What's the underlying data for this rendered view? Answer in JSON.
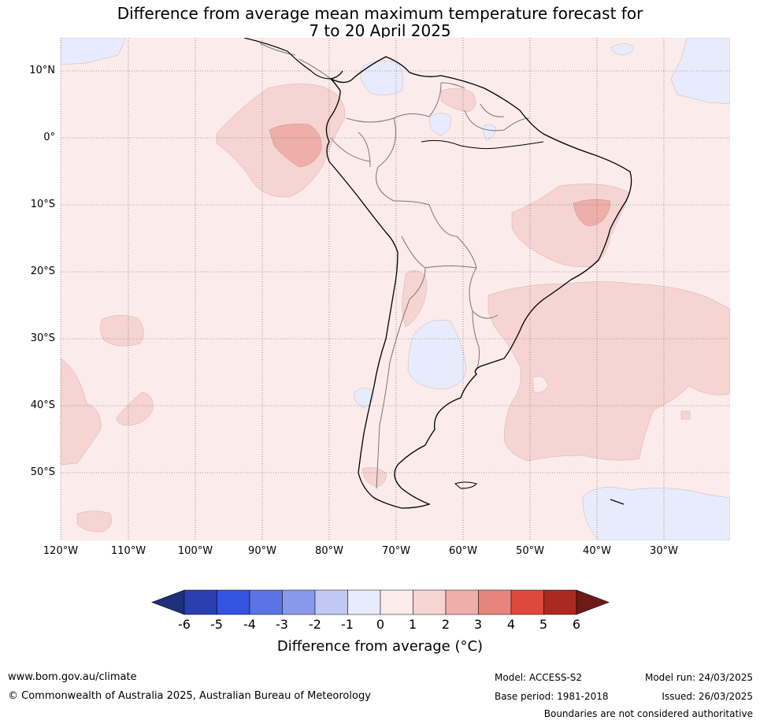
{
  "title": {
    "line1": "Difference from average mean maximum temperature forecast for",
    "line2": "7 to 20 April 2025"
  },
  "map": {
    "region": "South America",
    "lat_labels": [
      "10°N",
      "0°",
      "10°S",
      "20°S",
      "30°S",
      "40°S",
      "50°S"
    ],
    "lon_labels": [
      "120°W",
      "110°W",
      "100°W",
      "90°W",
      "80°W",
      "70°W",
      "60°W",
      "50°W",
      "40°W",
      "30°W"
    ],
    "background_color": "#fbebea"
  },
  "colorbar": {
    "ticks": [
      "-6",
      "-5",
      "-4",
      "-3",
      "-2",
      "-1",
      "0",
      "1",
      "2",
      "3",
      "4",
      "5",
      "6"
    ],
    "colors": [
      "#1f2f7a",
      "#2a3eb0",
      "#3353e0",
      "#5b73e4",
      "#8899ec",
      "#c0c8f3",
      "#e8ebfb",
      "#fbebea",
      "#f6d4d1",
      "#eeaeaa",
      "#e8847e",
      "#dc4a3e",
      "#aa2a22",
      "#6e1a18"
    ],
    "label": "Difference from average (°C)"
  },
  "footer": {
    "website": "www.bom.gov.au/climate",
    "copyright": "© Commonwealth of Australia 2025, Australian Bureau of Meteorology",
    "model": "Model: ACCESS-S2",
    "base_period": "Base period: 1981-2018",
    "model_run": "Model run: 24/03/2025",
    "issued": "Issued: 26/03/2025",
    "disclaimer": "Boundaries are not considered authoritative"
  }
}
